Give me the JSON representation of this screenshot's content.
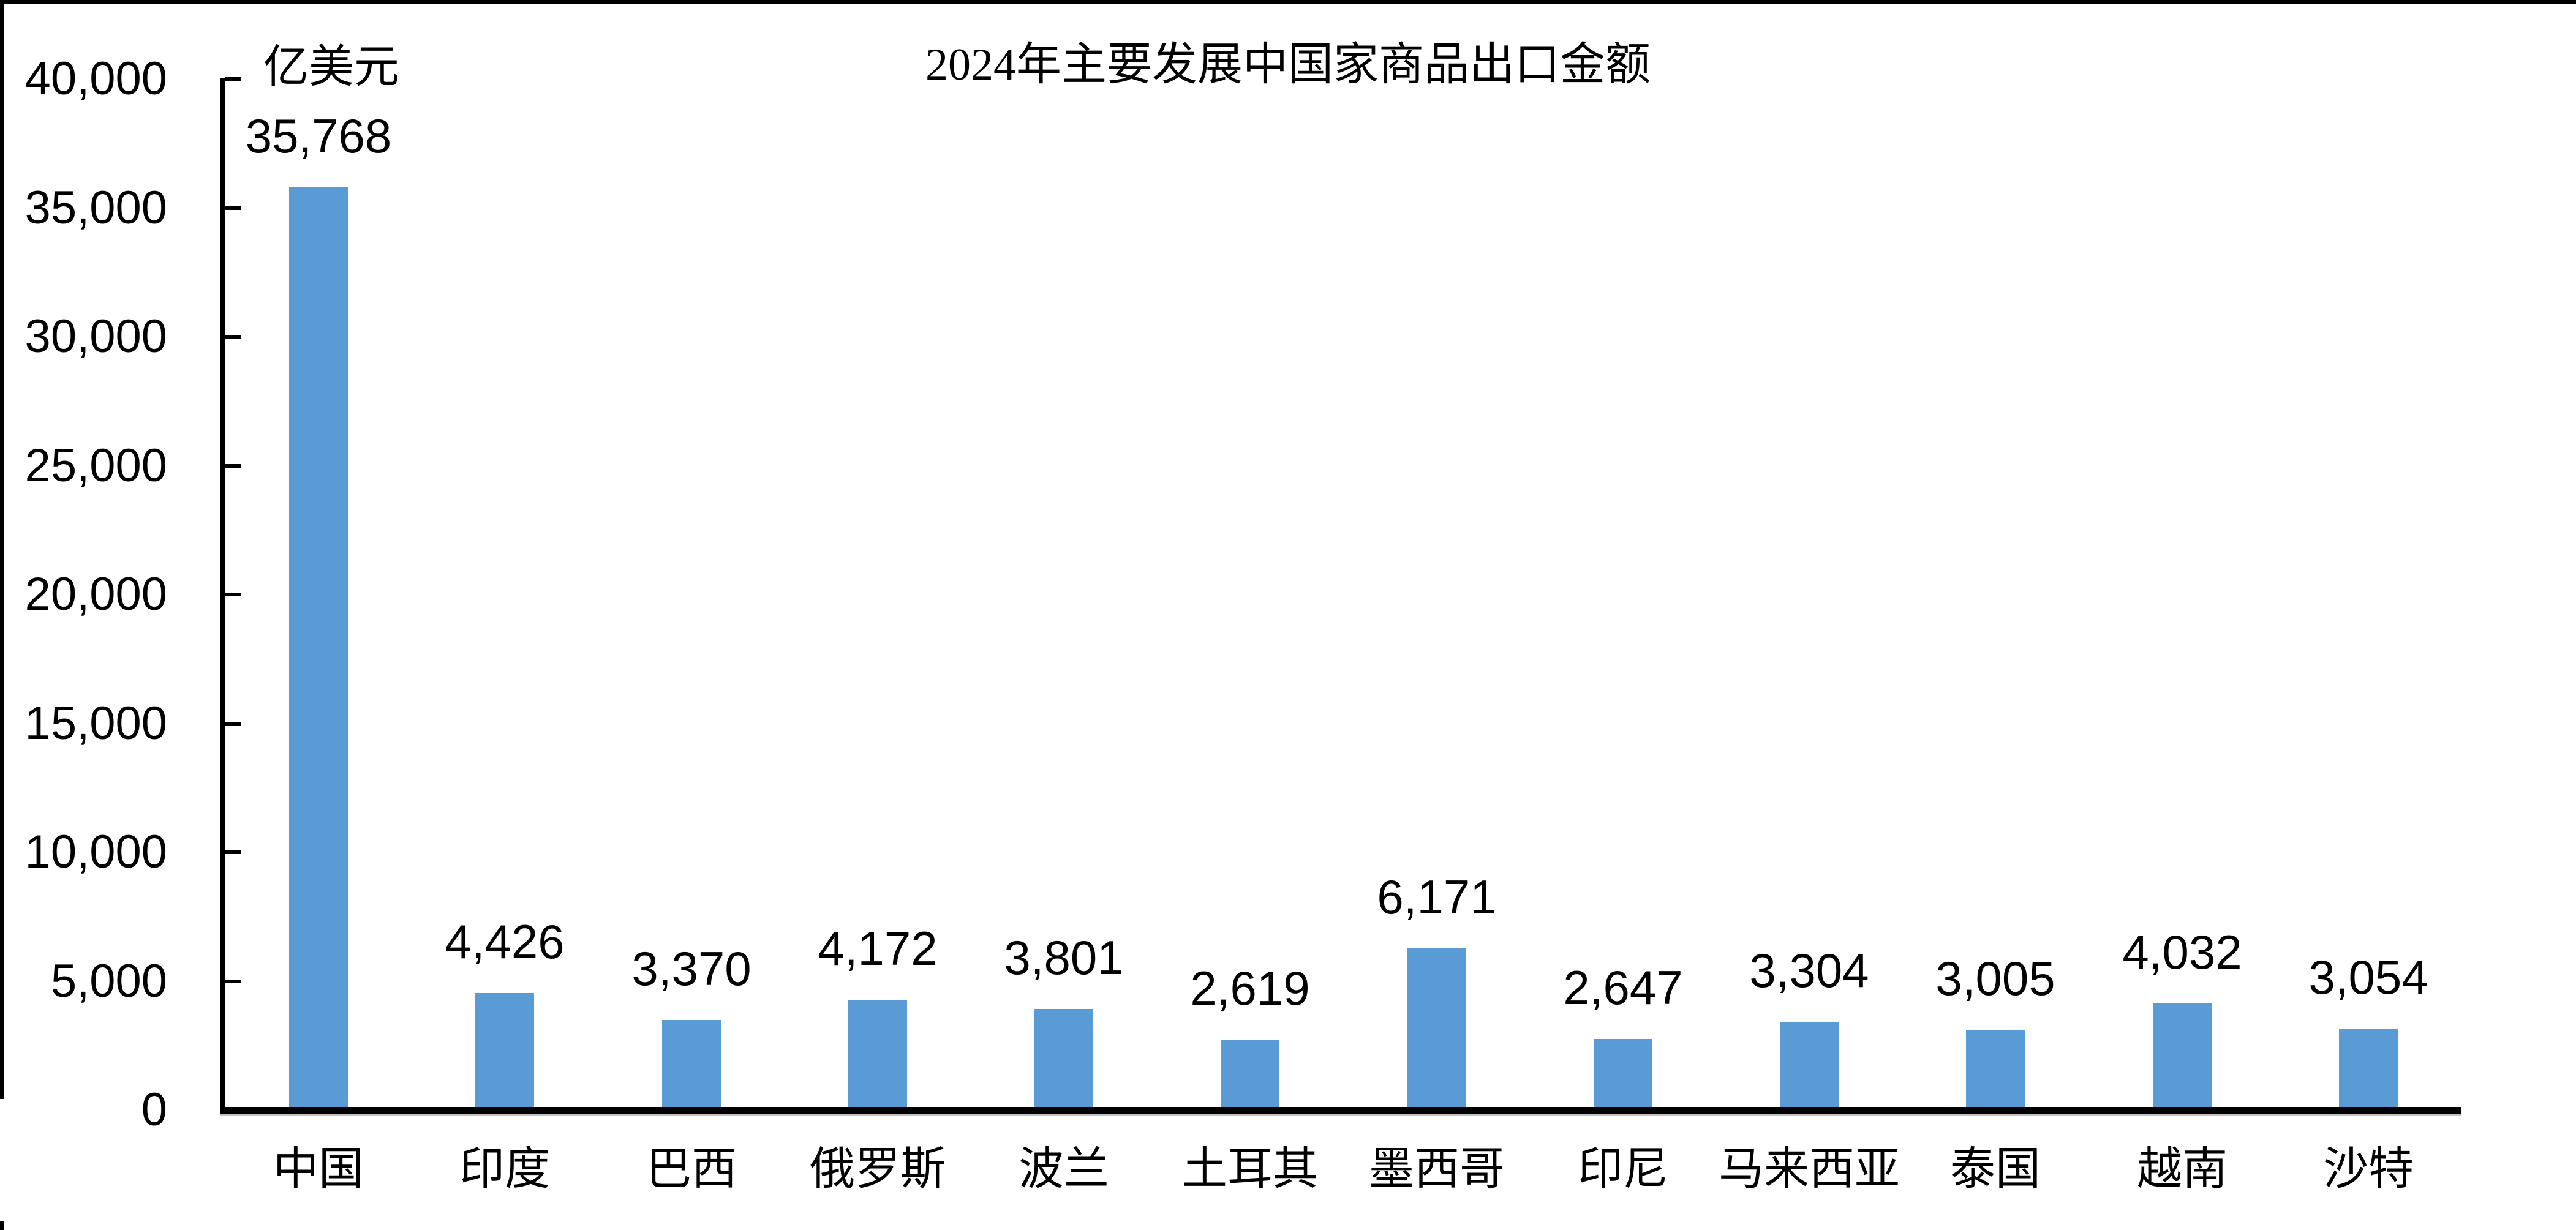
{
  "chart": {
    "title": "2024年主要发展中国家商品出口金额",
    "unit_label": "亿美元"
  },
  "chart_data": {
    "type": "bar",
    "title": "2024年主要发展中国家商品出口金额",
    "unit": "亿美元",
    "categories": [
      "中国",
      "印度",
      "巴西",
      "俄罗斯",
      "波兰",
      "土耳其",
      "墨西哥",
      "印尼",
      "马来西亚",
      "泰国",
      "越南",
      "沙特"
    ],
    "values": [
      35768,
      4426,
      3370,
      4172,
      3801,
      2619,
      6171,
      2647,
      3304,
      3005,
      4032,
      3054
    ],
    "value_labels": [
      "35,768",
      "4,426",
      "3,370",
      "4,172",
      "3,801",
      "2,619",
      "6,171",
      "2,647",
      "3,304",
      "3,005",
      "4,032",
      "3,054"
    ],
    "xlabel": "",
    "ylabel": "亿美元",
    "ylim": [
      0,
      40000
    ],
    "y_axis": {
      "min": 0,
      "max": 40000,
      "tick_step": 5000,
      "tick_labels_top_to_bottom": [
        "40,000",
        "35,000",
        "30,000",
        "25,000",
        "20,000",
        "15,000",
        "10,000",
        "5,000",
        "0"
      ]
    },
    "bar_color": "#5B9BD5",
    "axis_color": "#000000",
    "text_color": "#000000",
    "background_color": "#FFFFFF",
    "grid": false,
    "legend": false,
    "data_labels": true
  }
}
